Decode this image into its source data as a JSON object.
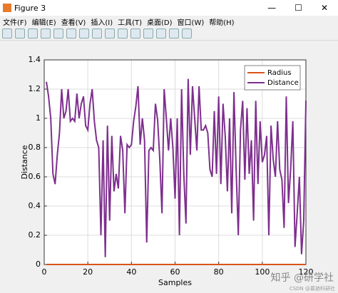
{
  "window": {
    "title": "Figure 3",
    "menu": [
      "文件(F)",
      "编辑(E)",
      "查看(V)",
      "插入(I)",
      "工具(T)",
      "桌面(D)",
      "窗口(W)",
      "帮助(H)"
    ]
  },
  "chart_data": {
    "type": "line",
    "xlabel": "Samples",
    "ylabel": "Distance",
    "x": [
      1,
      2,
      3,
      4,
      5,
      6,
      7,
      8,
      9,
      10,
      11,
      12,
      13,
      14,
      15,
      16,
      17,
      18,
      19,
      20,
      21,
      22,
      23,
      24,
      25,
      26,
      27,
      28,
      29,
      30,
      31,
      32,
      33,
      34,
      35,
      36,
      37,
      38,
      39,
      40,
      41,
      42,
      43,
      44,
      45,
      46,
      47,
      48,
      49,
      50,
      51,
      52,
      53,
      54,
      55,
      56,
      57,
      58,
      59,
      60,
      61,
      62,
      63,
      64,
      65,
      66,
      67,
      68,
      69,
      70,
      71,
      72,
      73,
      74,
      75,
      76,
      77,
      78,
      79,
      80,
      81,
      82,
      83,
      84,
      85,
      86,
      87,
      88,
      89,
      90,
      91,
      92,
      93,
      94,
      95,
      96,
      97,
      98,
      99,
      100,
      101,
      102,
      103,
      104,
      105,
      106,
      107,
      108,
      109,
      110,
      111,
      112,
      113,
      114,
      115,
      116,
      117,
      118,
      119,
      120
    ],
    "series": [
      {
        "name": "Radius",
        "color": "#d95319",
        "values": [
          0,
          0,
          0,
          0,
          0,
          0,
          0,
          0,
          0,
          0,
          0,
          0,
          0,
          0,
          0,
          0,
          0,
          0,
          0,
          0,
          0,
          0,
          0,
          0,
          0,
          0,
          0,
          0,
          0,
          0,
          0,
          0,
          0,
          0,
          0,
          0,
          0,
          0,
          0,
          0,
          0,
          0,
          0,
          0,
          0,
          0,
          0,
          0,
          0,
          0,
          0,
          0,
          0,
          0,
          0,
          0,
          0,
          0,
          0,
          0,
          0,
          0,
          0,
          0,
          0,
          0,
          0,
          0,
          0,
          0,
          0,
          0,
          0,
          0,
          0,
          0,
          0,
          0,
          0,
          0,
          0,
          0,
          0,
          0,
          0,
          0,
          0,
          0,
          0,
          0,
          0,
          0,
          0,
          0,
          0,
          0,
          0,
          0,
          0,
          0,
          0,
          0,
          0,
          0,
          0,
          0,
          0,
          0,
          0,
          0,
          0,
          0,
          0,
          0,
          0,
          0,
          0,
          0,
          0,
          0
        ]
      },
      {
        "name": "Distance",
        "color": "#7e2f8e",
        "values": [
          1.25,
          1.15,
          1.0,
          0.62,
          0.55,
          0.75,
          0.9,
          1.2,
          1.0,
          1.05,
          1.2,
          0.98,
          1.0,
          0.98,
          1.17,
          1.0,
          1.1,
          1.15,
          0.95,
          0.92,
          1.1,
          1.2,
          0.98,
          0.85,
          0.8,
          0.2,
          0.85,
          0.05,
          0.95,
          0.3,
          0.88,
          0.5,
          0.62,
          0.52,
          0.88,
          0.78,
          0.35,
          0.82,
          0.8,
          0.82,
          0.98,
          1.08,
          1.22,
          0.82,
          1.0,
          0.85,
          0.15,
          0.78,
          0.8,
          0.78,
          1.1,
          0.99,
          0.72,
          0.35,
          1.2,
          1.0,
          0.78,
          1.0,
          0.8,
          0.45,
          1.0,
          0.2,
          1.2,
          0.62,
          0.28,
          1.27,
          0.75,
          1.22,
          1.0,
          0.78,
          1.22,
          0.92,
          0.92,
          0.95,
          0.9,
          0.65,
          0.6,
          1.05,
          0.62,
          1.15,
          0.55,
          1.1,
          0.88,
          0.5,
          1.0,
          0.35,
          1.18,
          0.65,
          0.2,
          0.92,
          1.12,
          0.58,
          1.07,
          0.62,
          0.85,
          0.3,
          1.12,
          0.55,
          0.98,
          0.7,
          0.75,
          0.88,
          0.2,
          0.95,
          0.72,
          0.6,
          0.98,
          0.65,
          0.58,
          0.25,
          1.15,
          0.42,
          0.65,
          0.98,
          0.12,
          0.35,
          0.6,
          0.07,
          0.3,
          1.12
        ]
      }
    ],
    "xlim": [
      0,
      120
    ],
    "xticks": [
      0,
      20,
      40,
      60,
      80,
      100,
      120
    ],
    "ylim": [
      0,
      1.4
    ],
    "yticks": [
      0,
      0.2,
      0.4,
      0.6,
      0.8,
      1,
      1.2,
      1.4
    ],
    "grid": true,
    "legend": "top-right"
  },
  "watermark": {
    "main": "知乎 @研学社",
    "sub": "CSDN @慕旅科研社"
  }
}
